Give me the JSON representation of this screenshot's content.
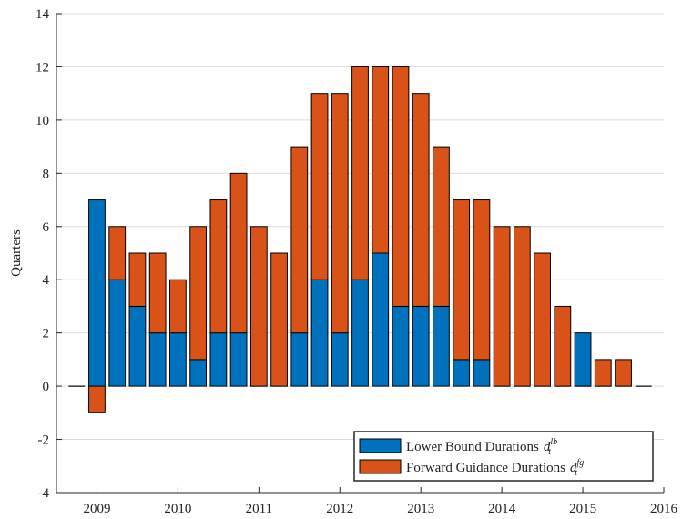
{
  "chart_data": {
    "type": "stacked_bar",
    "y_label": "Quarters",
    "x": [
      2008.75,
      2009,
      2009.25,
      2009.5,
      2009.75,
      2010,
      2010.25,
      2010.5,
      2010.75,
      2011,
      2011.25,
      2011.5,
      2011.75,
      2012,
      2012.25,
      2012.5,
      2012.75,
      2013,
      2013.25,
      2013.5,
      2013.75,
      2014,
      2014.25,
      2014.5,
      2014.75,
      2015,
      2015.25,
      2015.5,
      2015.75
    ],
    "series": [
      {
        "name": "Lower Bound Durations",
        "symbol": {
          "base": "d",
          "sub": "t",
          "sup": "lb"
        },
        "color": "#0072bd",
        "values": [
          0,
          7,
          4,
          3,
          2,
          2,
          1,
          2,
          2,
          0,
          0,
          2,
          4,
          2,
          4,
          5,
          3,
          3,
          3,
          1,
          1,
          0,
          0,
          0,
          0,
          2,
          0,
          0,
          0
        ]
      },
      {
        "name": "Forward Guidance Durations",
        "symbol": {
          "base": "d",
          "sub": "t",
          "sup": "fg"
        },
        "color": "#d95319",
        "values": [
          0,
          -1,
          2,
          2,
          3,
          2,
          5,
          5,
          6,
          6,
          5,
          7,
          7,
          9,
          8,
          7,
          9,
          8,
          6,
          6,
          6,
          6,
          6,
          5,
          3,
          0,
          1,
          1,
          0
        ]
      }
    ],
    "xlim": [
      2008.5,
      2016
    ],
    "xticks": [
      2009,
      2010,
      2011,
      2012,
      2013,
      2014,
      2015,
      2016
    ],
    "ylim": [
      -4,
      14
    ],
    "yticks": [
      -4,
      -2,
      0,
      2,
      4,
      6,
      8,
      10,
      12,
      14
    ],
    "grid": true,
    "legend": "bottom-right"
  }
}
